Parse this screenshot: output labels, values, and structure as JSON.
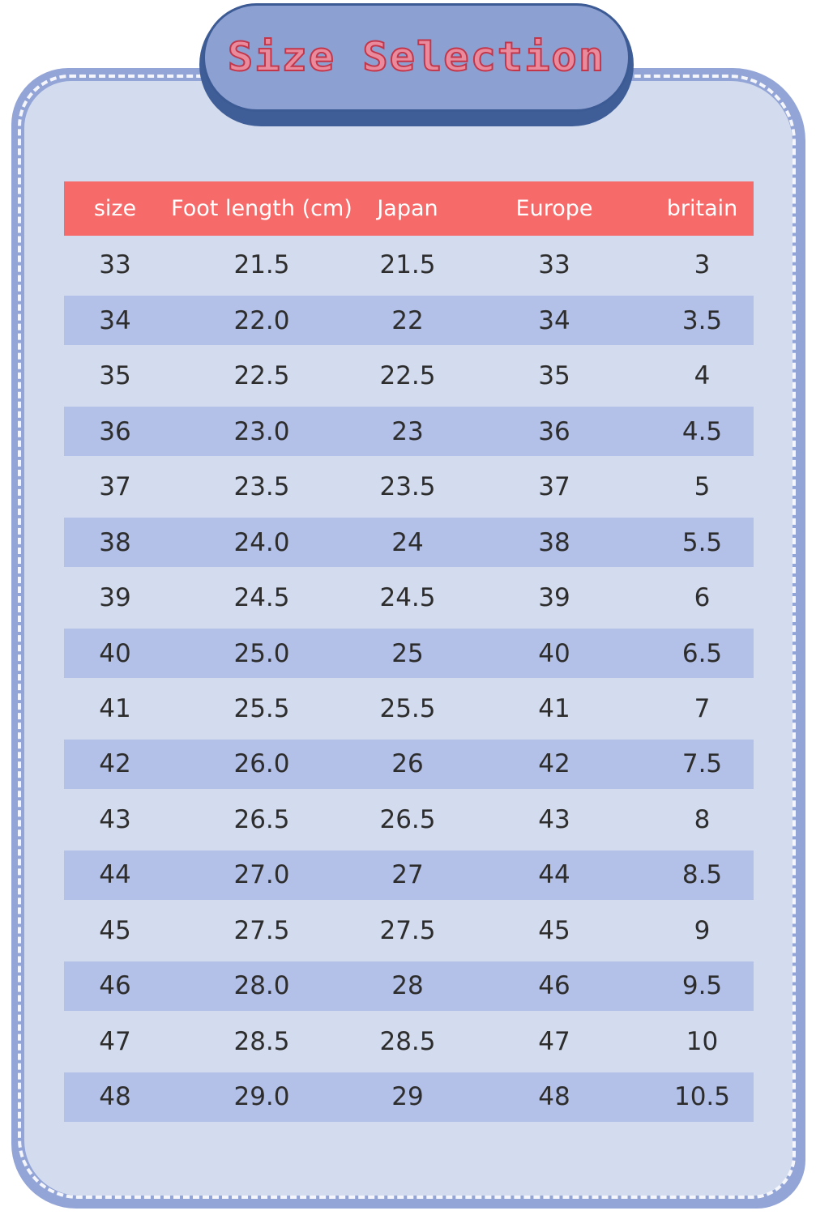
{
  "title": "Size Selection",
  "colors": {
    "header_bg": "#f76a6a",
    "stripe": "#b3c0e7",
    "card_bg": "#d3dcee",
    "frame": "#93a4d6",
    "title_text": "#c3364a"
  },
  "table": {
    "headers": [
      "size",
      "Foot length (cm)",
      "Japan",
      "Europe",
      "britain"
    ],
    "rows": [
      [
        "33",
        "21.5",
        "21.5",
        "33",
        "3"
      ],
      [
        "34",
        "22.0",
        "22",
        "34",
        "3.5"
      ],
      [
        "35",
        "22.5",
        "22.5",
        "35",
        "4"
      ],
      [
        "36",
        "23.0",
        "23",
        "36",
        "4.5"
      ],
      [
        "37",
        "23.5",
        "23.5",
        "37",
        "5"
      ],
      [
        "38",
        "24.0",
        "24",
        "38",
        "5.5"
      ],
      [
        "39",
        "24.5",
        "24.5",
        "39",
        "6"
      ],
      [
        "40",
        "25.0",
        "25",
        "40",
        "6.5"
      ],
      [
        "41",
        "25.5",
        "25.5",
        "41",
        "7"
      ],
      [
        "42",
        "26.0",
        "26",
        "42",
        "7.5"
      ],
      [
        "43",
        "26.5",
        "26.5",
        "43",
        "8"
      ],
      [
        "44",
        "27.0",
        "27",
        "44",
        "8.5"
      ],
      [
        "45",
        "27.5",
        "27.5",
        "45",
        "9"
      ],
      [
        "46",
        "28.0",
        "28",
        "46",
        "9.5"
      ],
      [
        "47",
        "28.5",
        "28.5",
        "47",
        "10"
      ],
      [
        "48",
        "29.0",
        "29",
        "48",
        "10.5"
      ]
    ]
  }
}
